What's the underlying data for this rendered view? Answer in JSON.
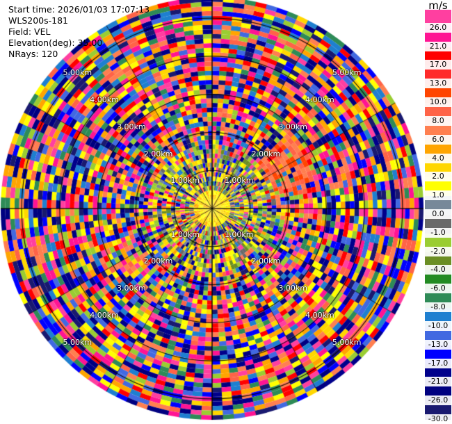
{
  "header": {
    "start_time": "Start time: 2026/01/03 17:07:13",
    "instrument": "WLS200s-181",
    "field": "Field: VEL",
    "elevation": "Elevation(deg): 35.00",
    "nrays": "NRays: 120"
  },
  "chart_data": {
    "type": "heatmap",
    "projection": "polar",
    "field": "VEL",
    "elevation_deg": 35.0,
    "n_rays": 120,
    "grid": true,
    "range_ring_labels": [
      "1.00km",
      "2.00km",
      "3.00km",
      "4.00km",
      "5.00km"
    ],
    "colorbar": {
      "unit": "m/s",
      "placement": "right",
      "ticks": [
        26.0,
        21.0,
        17.0,
        13.0,
        10.0,
        8.0,
        6.0,
        4.0,
        2.0,
        1.0,
        0.0,
        -1.0,
        -2.0,
        -4.0,
        -6.0,
        -8.0,
        -10.0,
        -13.0,
        -17.0,
        -21.0,
        -26.0,
        -30.0
      ],
      "tick_labels": [
        "26.0",
        "21.0",
        "17.0",
        "13.0",
        "10.0",
        "8.0",
        "6.0",
        "4.0",
        "2.0",
        "1.0",
        "0.0",
        "-1.0",
        "-2.0",
        "-4.0",
        "-6.0",
        "-8.0",
        "-10.0",
        "-13.0",
        "-17.0",
        "-21.0",
        "-26.0",
        "-30.0"
      ],
      "colors": [
        "#ff3fa0",
        "#ff1493",
        "#ff0000",
        "#ff2b2b",
        "#ff4500",
        "#ff6347",
        "#ff7f50",
        "#ffa500",
        "#ffd700",
        "#ffff00",
        "#778899",
        "#696969",
        "#9acd32",
        "#6b8e23",
        "#228b22",
        "#2e8b57",
        "#1e7fd0",
        "#4169e1",
        "#0000ff",
        "#00008b",
        "#000080",
        "#191970"
      ]
    }
  }
}
